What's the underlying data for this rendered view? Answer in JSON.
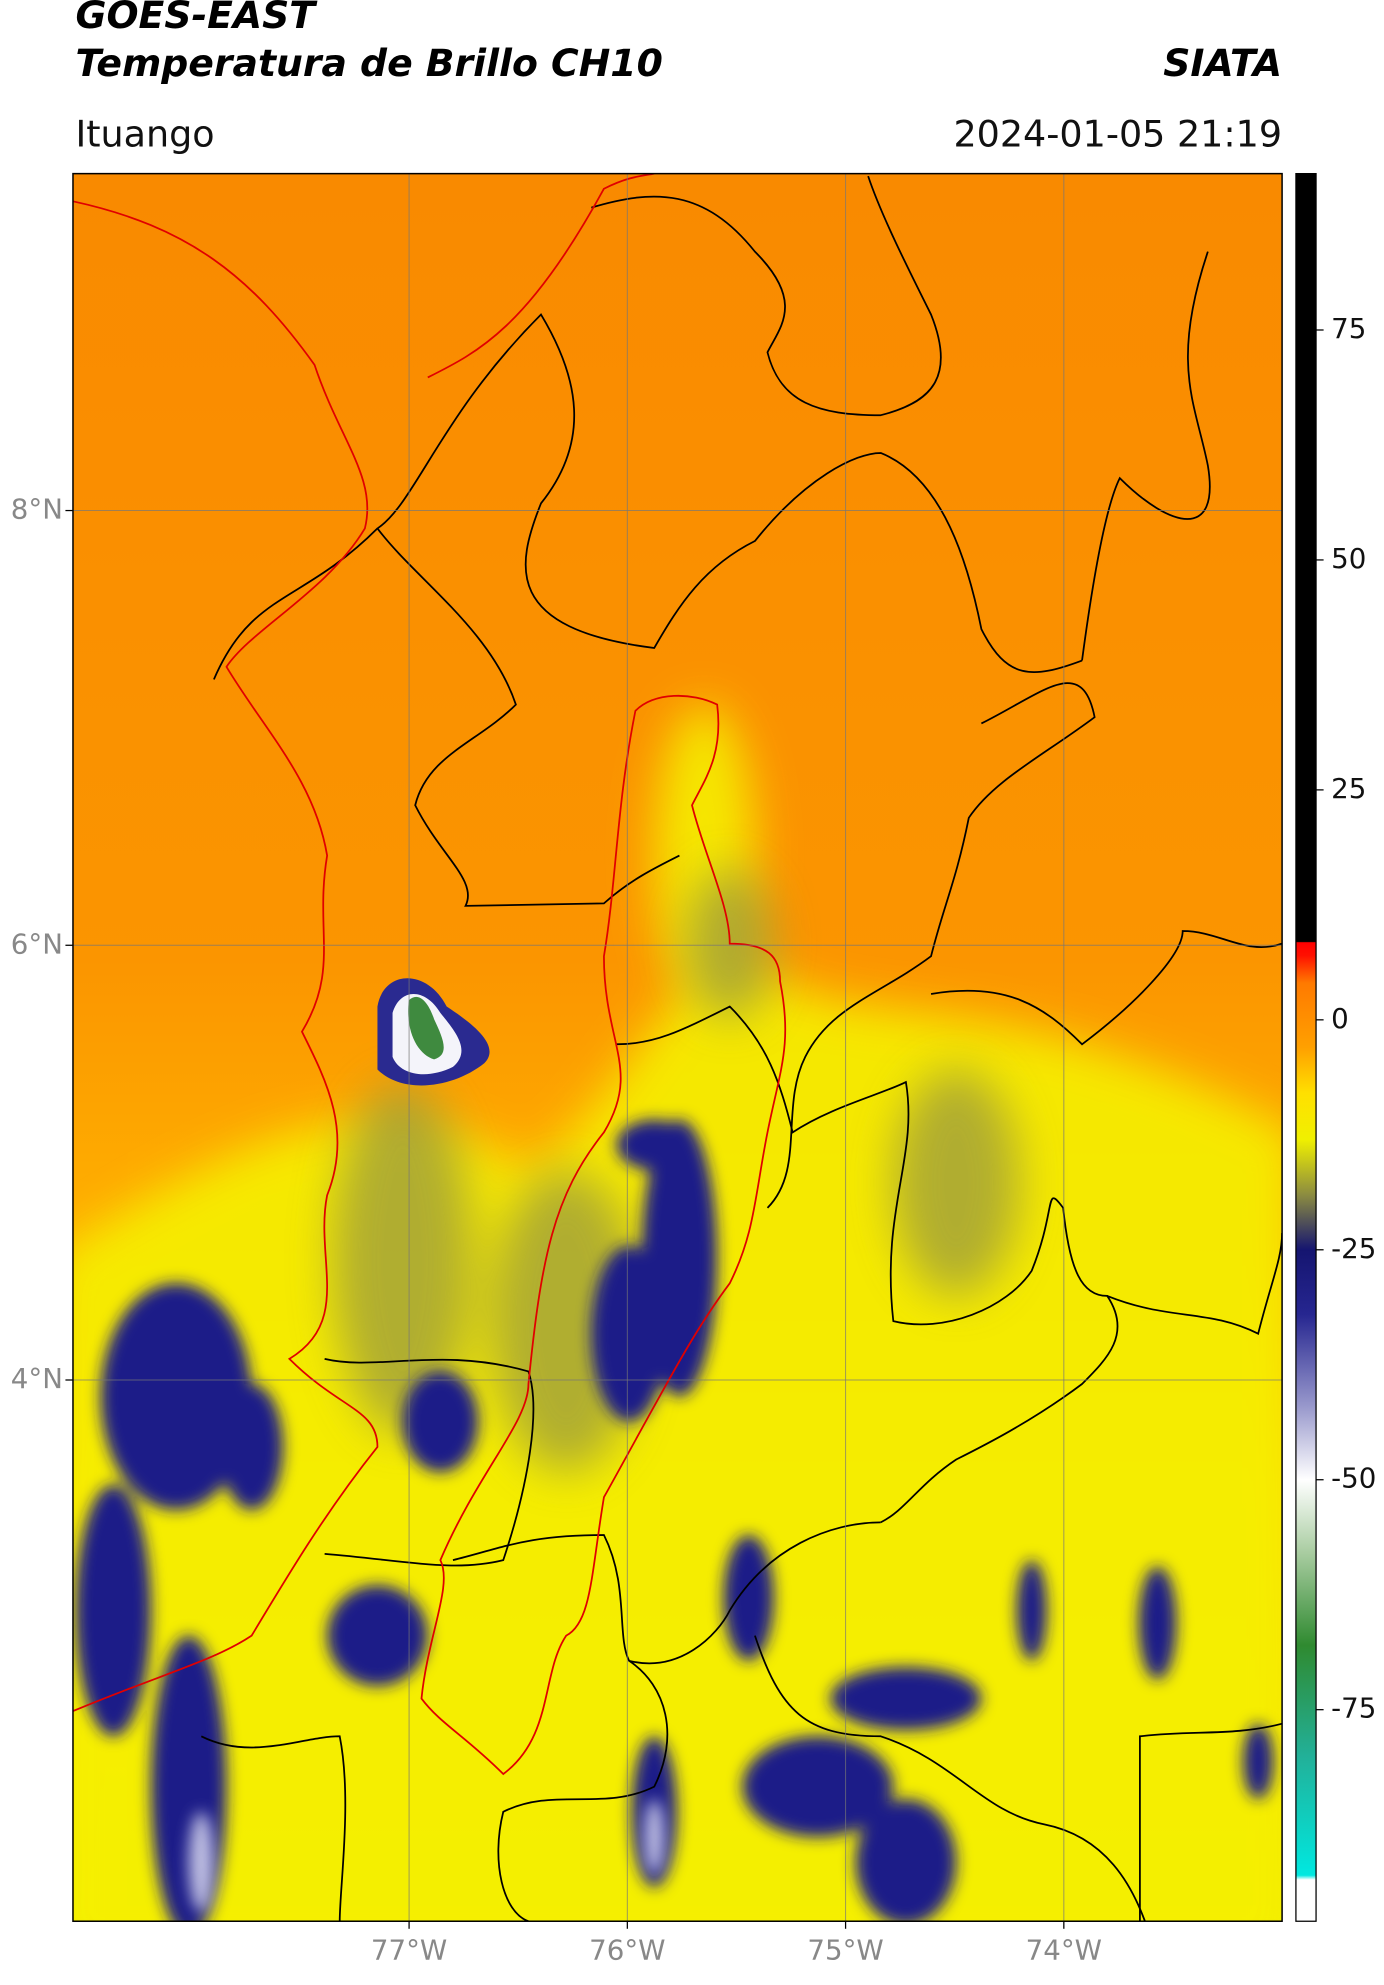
{
  "header": {
    "title": "GOES-EAST",
    "subtitle": "Temperatura de Brillo CH10",
    "brand": "SIATA",
    "location": "Ituango",
    "datetime": "2024-01-05 21:19"
  },
  "map": {
    "lonlim": [
      -78.54,
      -73.0
    ],
    "latlim": [
      1.51,
      9.55
    ],
    "lonticks": [
      {
        "value": -77,
        "label": "77°W"
      },
      {
        "value": -76,
        "label": "76°W"
      },
      {
        "value": -75,
        "label": "75°W"
      },
      {
        "value": -74,
        "label": "74°W"
      }
    ],
    "latticks": [
      {
        "value": 8,
        "label": "8°N"
      },
      {
        "value": 6,
        "label": "6°N"
      },
      {
        "value": 4,
        "label": "4°N"
      }
    ],
    "grid": true
  },
  "colorbar": {
    "lim": [
      -98,
      92
    ],
    "ticks": [
      75,
      50,
      25,
      0,
      -25,
      -50,
      -75
    ],
    "colorscale": [
      {
        "value": -98,
        "color": "#ffffff"
      },
      {
        "value": -93.5,
        "color": "#ffffff"
      },
      {
        "value": -93,
        "color": "#00e8e0"
      },
      {
        "value": -80,
        "color": "#22b098"
      },
      {
        "value": -68,
        "color": "#2f8a30"
      },
      {
        "value": -58,
        "color": "#a8cca0"
      },
      {
        "value": -50,
        "color": "#ffffff"
      },
      {
        "value": -42,
        "color": "#9898cc"
      },
      {
        "value": -32,
        "color": "#262690"
      },
      {
        "value": -25,
        "color": "#151570"
      },
      {
        "value": -19,
        "color": "#8c8c40"
      },
      {
        "value": -13,
        "color": "#f0f000"
      },
      {
        "value": -8,
        "color": "#ffe000"
      },
      {
        "value": -3,
        "color": "#ffa000"
      },
      {
        "value": 4,
        "color": "#ff7a00"
      },
      {
        "value": 7,
        "color": "#ff1000"
      },
      {
        "value": 8.4,
        "color": "#ff0000"
      },
      {
        "value": 8.5,
        "color": "#000000"
      },
      {
        "value": 92,
        "color": "#000000"
      }
    ]
  }
}
